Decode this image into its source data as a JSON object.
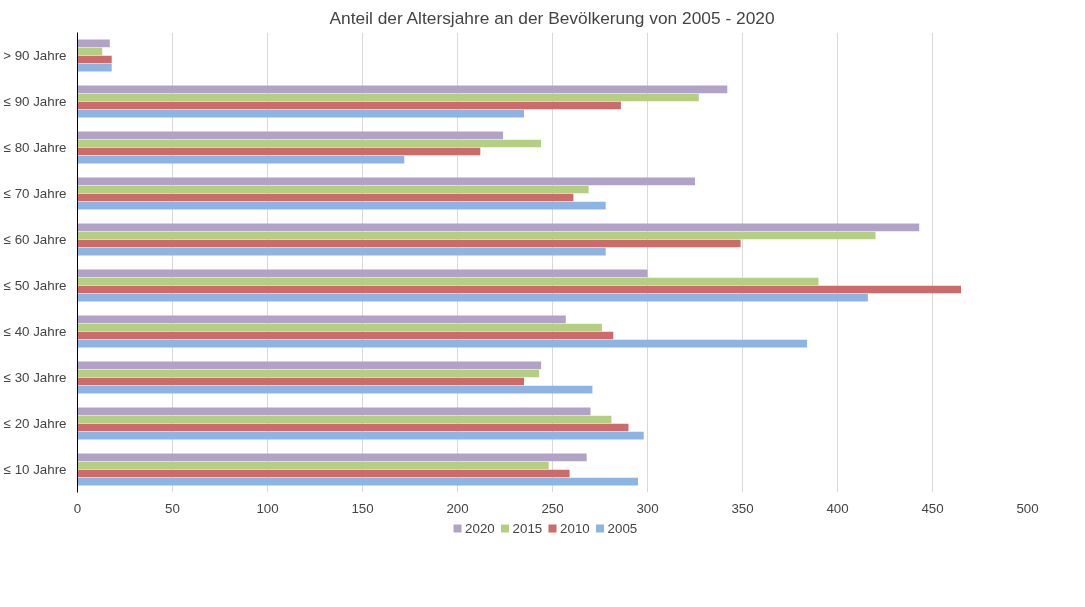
{
  "chart_data": {
    "type": "bar",
    "orientation": "horizontal",
    "title": "Anteil der Altersjahre an der Bevölkerung von 2005 - 2020",
    "categories": [
      "> 90 Jahre",
      "≤ 90 Jahre",
      "≤ 80 Jahre",
      "≤ 70 Jahre",
      "≤ 60 Jahre",
      "≤ 50 Jahre",
      "≤ 40 Jahre",
      "≤ 30 Jahre",
      "≤ 20 Jahre",
      "≤ 10 Jahre"
    ],
    "series": [
      {
        "name": "2020",
        "color": "#b3a2c7",
        "values": [
          17,
          342,
          224,
          325,
          443,
          300,
          257,
          244,
          270,
          268
        ]
      },
      {
        "name": "2015",
        "color": "#b5cf82",
        "values": [
          13,
          327,
          244,
          269,
          420,
          390,
          276,
          243,
          281,
          248
        ]
      },
      {
        "name": "2010",
        "color": "#cd6b6b",
        "values": [
          18,
          286,
          212,
          261,
          349,
          465,
          282,
          235,
          290,
          259
        ]
      },
      {
        "name": "2005",
        "color": "#8db4e2",
        "values": [
          18,
          235,
          172,
          278,
          278,
          416,
          384,
          271,
          298,
          295
        ]
      }
    ],
    "xlim": [
      0,
      500
    ],
    "xticks": [
      0,
      50,
      100,
      150,
      200,
      250,
      300,
      350,
      400,
      450,
      500
    ],
    "grid": "x",
    "legend": "bottom"
  }
}
